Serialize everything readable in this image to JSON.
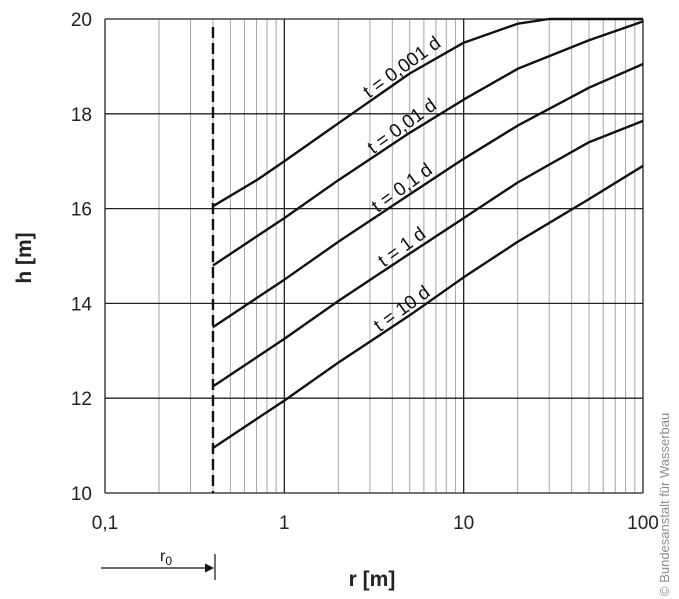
{
  "chart_data": {
    "type": "line",
    "xscale": "log",
    "xlim": [
      0.1,
      100
    ],
    "ylim": [
      10,
      20
    ],
    "xlabel": "r [m]",
    "ylabel": "h [m]",
    "x_ticks": [
      0.1,
      1,
      10,
      100
    ],
    "x_tick_labels": [
      "0,1",
      "1",
      "10",
      "100"
    ],
    "y_ticks": [
      10,
      12,
      14,
      16,
      18,
      20
    ],
    "y_tick_labels": [
      "10",
      "12",
      "14",
      "16",
      "18",
      "20"
    ],
    "grid": true,
    "series": [
      {
        "name": "t = 0,001 d",
        "x": [
          0.4,
          0.7,
          1,
          2,
          5,
          10,
          20,
          30,
          50,
          100
        ],
        "y": [
          16.05,
          16.6,
          17.0,
          17.8,
          18.85,
          19.5,
          19.9,
          20.0,
          20.0,
          20.0
        ]
      },
      {
        "name": "t = 0,01 d",
        "x": [
          0.4,
          1,
          2,
          5,
          10,
          20,
          50,
          100
        ],
        "y": [
          14.8,
          15.8,
          16.6,
          17.6,
          18.3,
          18.95,
          19.55,
          19.95
        ]
      },
      {
        "name": "t = 0,1 d",
        "x": [
          0.4,
          1,
          2,
          5,
          10,
          20,
          50,
          100
        ],
        "y": [
          13.5,
          14.5,
          15.3,
          16.3,
          17.05,
          17.75,
          18.55,
          19.05
        ]
      },
      {
        "name": "t = 1 d",
        "x": [
          0.4,
          1,
          2,
          5,
          10,
          20,
          50,
          100
        ],
        "y": [
          12.25,
          13.25,
          14.05,
          15.05,
          15.8,
          16.55,
          17.4,
          17.85
        ]
      },
      {
        "name": "t = 10 d",
        "x": [
          0.4,
          1,
          2,
          5,
          10,
          20,
          50,
          100
        ],
        "y": [
          10.95,
          11.95,
          12.75,
          13.75,
          14.55,
          15.3,
          16.2,
          16.9
        ]
      }
    ],
    "well_radius": {
      "label": "r",
      "subscript": "0",
      "x": 0.4
    }
  },
  "copyright": "© Bundesanstalt für Wasserbau"
}
